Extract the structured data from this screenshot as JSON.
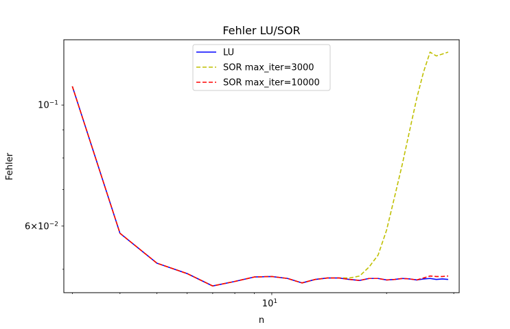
{
  "chart_data": {
    "type": "line",
    "title": "Fehler LU/SOR",
    "xlabel": "n",
    "ylabel": "Fehler",
    "xscale": "log",
    "yscale": "log",
    "xlim": [
      2.85,
      31.0
    ],
    "ylim": [
      0.0453,
      0.1317
    ],
    "x_ticks": [
      {
        "value": 10,
        "label": "10",
        "exp": "1"
      }
    ],
    "y_ticks": [
      {
        "value": 0.1,
        "base": "10",
        "exp": "−1"
      },
      {
        "value": 0.06,
        "base": "6×10",
        "exp": "−2"
      }
    ],
    "grid": false,
    "legend_position": "top-center",
    "x": [
      3,
      4,
      5,
      6,
      7,
      8,
      9,
      10,
      11,
      12,
      13,
      14,
      15,
      16,
      17,
      18,
      19,
      20,
      21,
      22,
      23,
      24,
      25,
      26,
      27,
      28,
      29
    ],
    "series": [
      {
        "name": "LU",
        "color": "#0000ff",
        "dash": "solid",
        "values": [
          0.1082,
          0.0582,
          0.0513,
          0.0491,
          0.0466,
          0.0475,
          0.0484,
          0.0485,
          0.0481,
          0.0472,
          0.0479,
          0.0482,
          0.0482,
          0.0479,
          0.0477,
          0.0481,
          0.0481,
          0.0478,
          0.0479,
          0.0481,
          0.048,
          0.0478,
          0.048,
          0.0481,
          0.0479,
          0.048,
          0.0479
        ]
      },
      {
        "name": "SOR max_iter=3000",
        "color": "#bfbf00",
        "dash": "dashed",
        "values": [
          0.1082,
          0.0582,
          0.0513,
          0.0491,
          0.0466,
          0.0475,
          0.0484,
          0.0485,
          0.0481,
          0.0472,
          0.0479,
          0.0482,
          0.0482,
          0.0482,
          0.0486,
          0.0505,
          0.0531,
          0.059,
          0.068,
          0.078,
          0.09,
          0.103,
          0.115,
          0.125,
          0.123,
          0.124,
          0.125
        ]
      },
      {
        "name": "SOR max_iter=10000",
        "color": "#ff0000",
        "dash": "dashed",
        "values": [
          0.1082,
          0.0582,
          0.0513,
          0.0491,
          0.0466,
          0.0475,
          0.0484,
          0.0485,
          0.0481,
          0.0472,
          0.0479,
          0.0482,
          0.0482,
          0.0479,
          0.0477,
          0.0481,
          0.0481,
          0.0478,
          0.0479,
          0.0481,
          0.048,
          0.0478,
          0.0482,
          0.0486,
          0.0485,
          0.0485,
          0.0486
        ]
      }
    ]
  }
}
